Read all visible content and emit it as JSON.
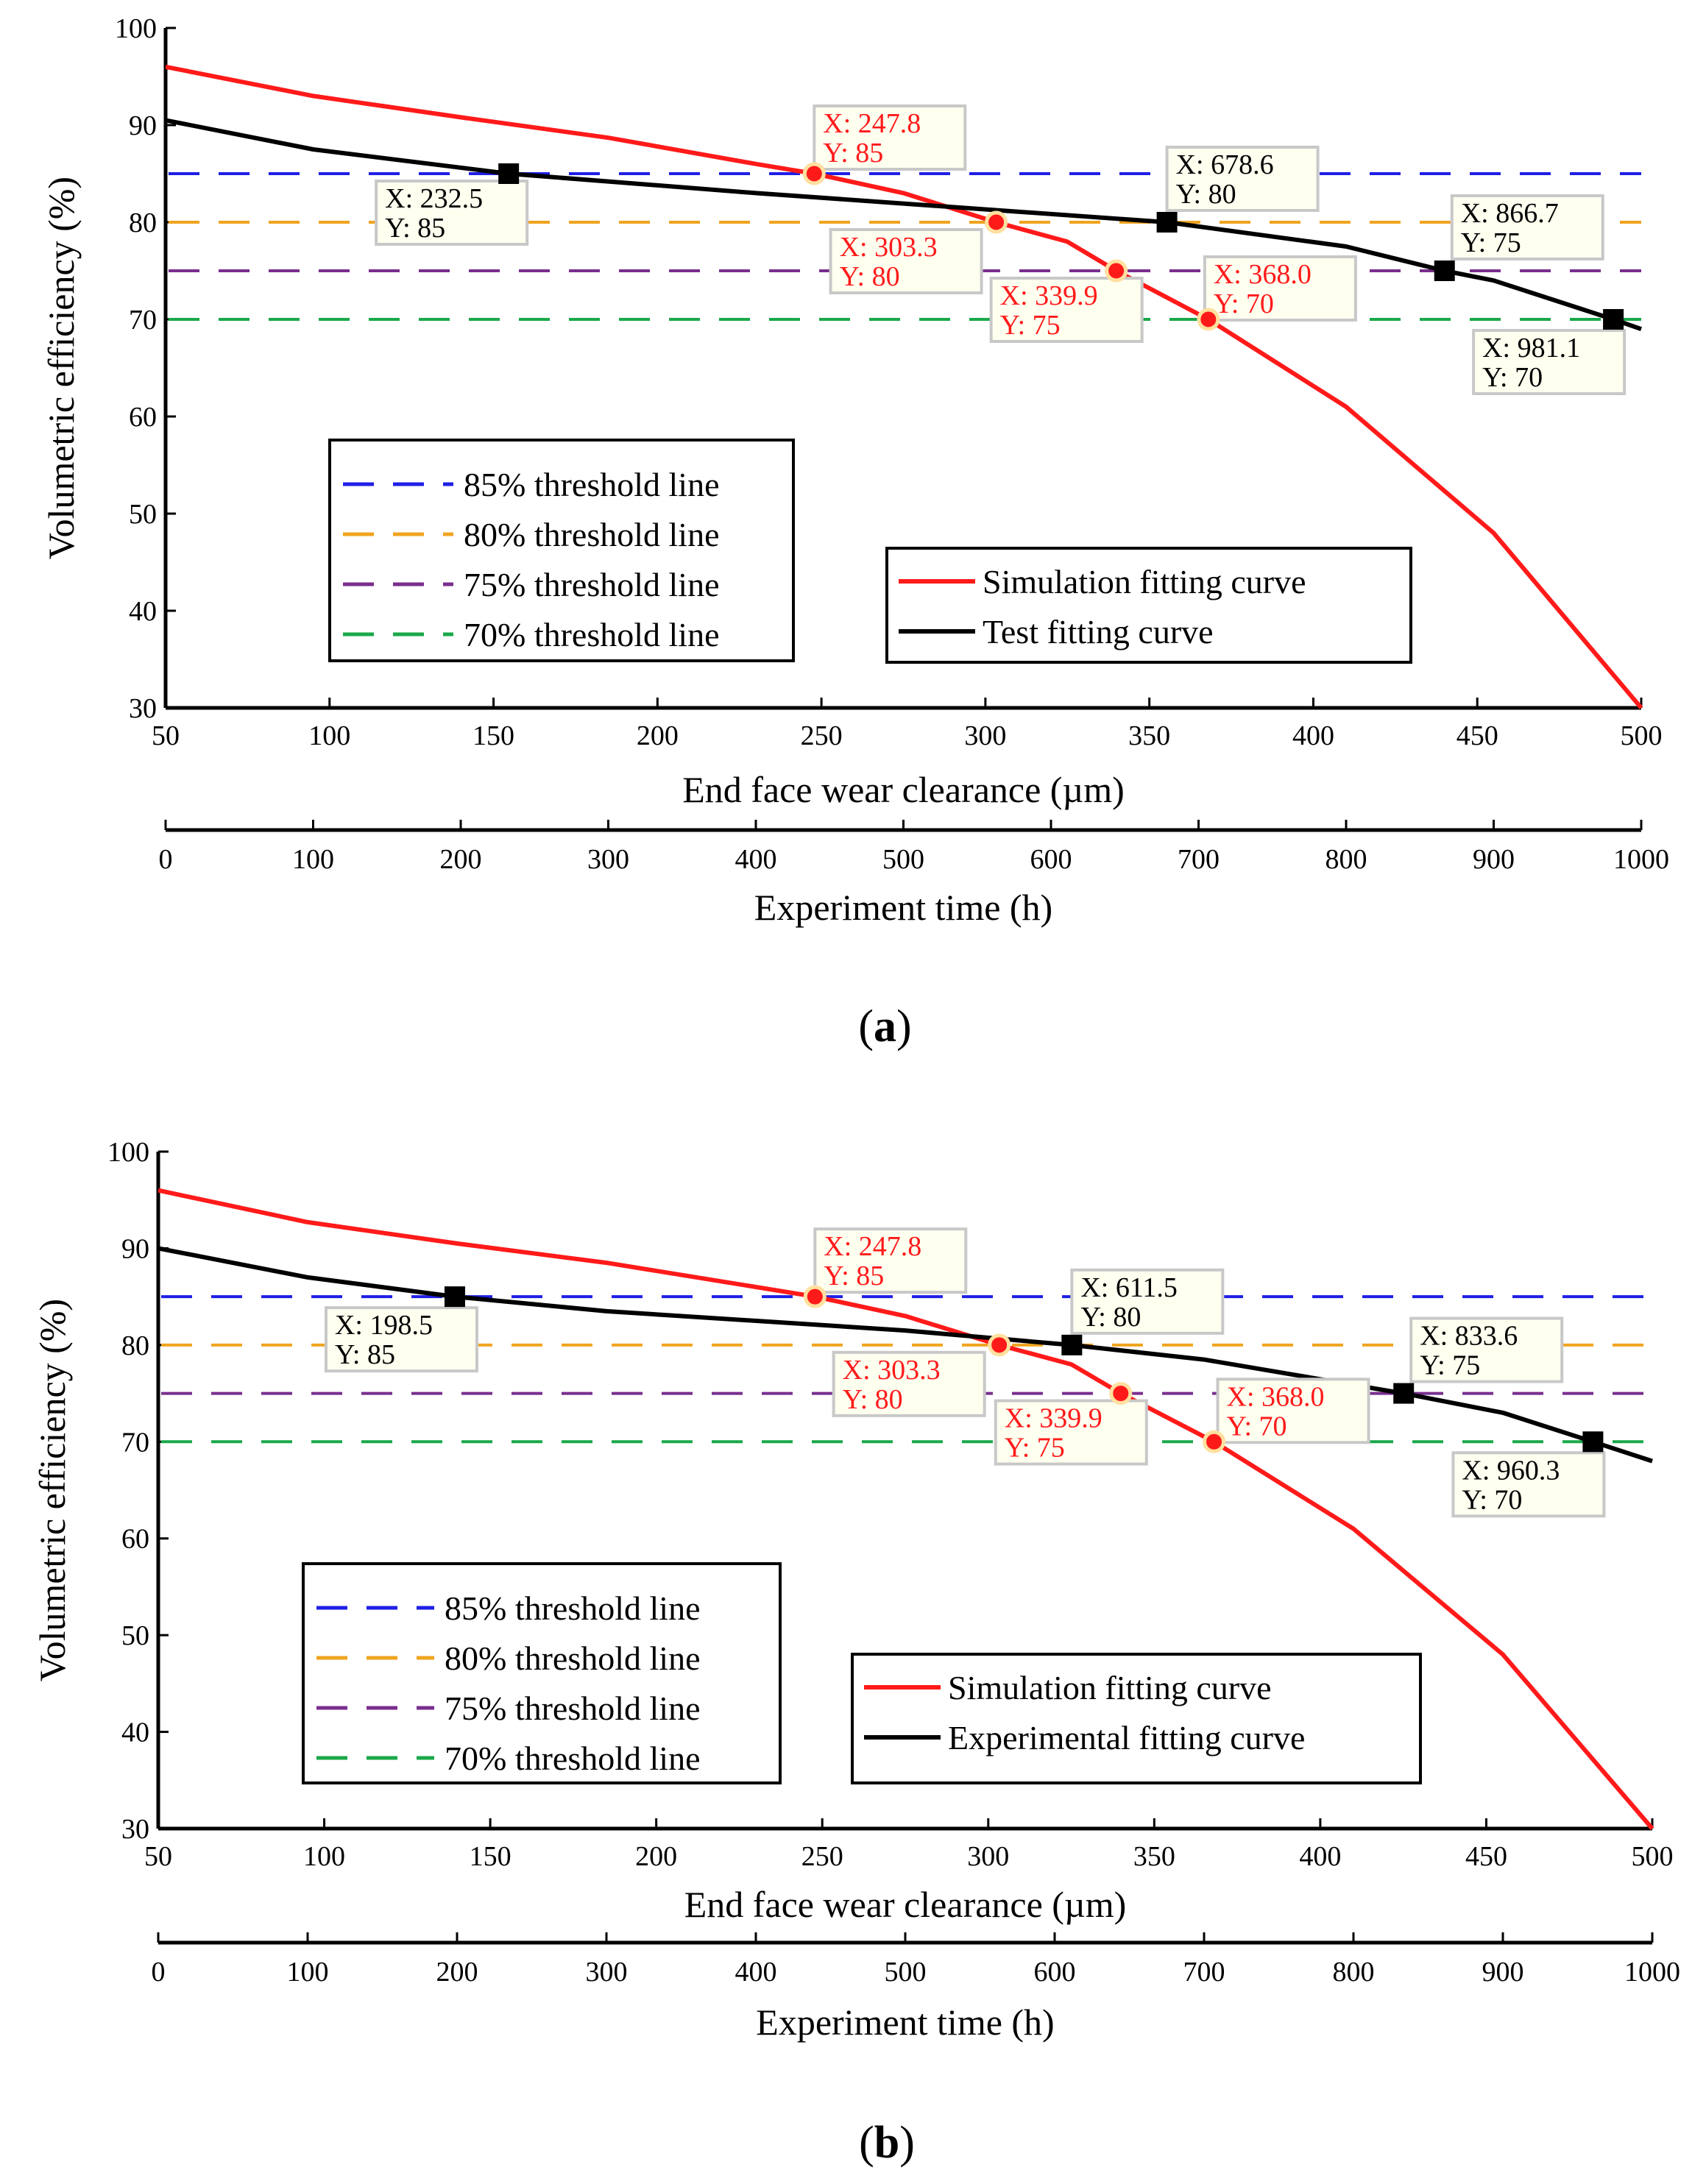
{
  "chart_data": [
    {
      "id": "a",
      "type": "line",
      "panel_label_open": "(",
      "panel_label_letter": "a",
      "panel_label_close": ")",
      "ylabel": "Volumetric efficiency (%)",
      "xlabel": "End face wear clearance (µm)",
      "x2label": "Experiment time (h)",
      "ylim": [
        30,
        100
      ],
      "xlim": [
        50,
        500
      ],
      "x2lim": [
        0,
        1000
      ],
      "yticks": [
        "30",
        "40",
        "50",
        "60",
        "70",
        "80",
        "90",
        "100"
      ],
      "xticks": [
        "50",
        "100",
        "150",
        "200",
        "250",
        "300",
        "350",
        "400",
        "450",
        "500"
      ],
      "x2ticks": [
        "0",
        "100",
        "200",
        "300",
        "400",
        "500",
        "600",
        "700",
        "800",
        "900",
        "1000"
      ],
      "thresholds": [
        {
          "label": "85% threshold line",
          "y": 85,
          "color": "#1f1fe6"
        },
        {
          "label": "80% threshold line",
          "y": 80,
          "color": "#f0a420"
        },
        {
          "label": "75% threshold line",
          "y": 75,
          "color": "#7a2e8e"
        },
        {
          "label": "70% threshold line",
          "y": 70,
          "color": "#1aa84a"
        }
      ],
      "series": [
        {
          "name": "Simulation fitting curve",
          "color": "#ff1a1a",
          "axis": "x",
          "x": [
            50,
            95,
            140,
            185,
            230,
            247.8,
            275,
            303.3,
            325,
            339.9,
            368,
            410,
            455,
            500
          ],
          "y": [
            96,
            93,
            90.8,
            88.7,
            86,
            85,
            83,
            80,
            78,
            75,
            70,
            61,
            48,
            30
          ]
        },
        {
          "name": "Test fitting curve",
          "color": "#000000",
          "axis": "x2",
          "x": [
            0,
            100,
            232.5,
            400,
            678.6,
            800,
            866.7,
            900,
            981.1,
            1000
          ],
          "y": [
            90.5,
            87.5,
            85,
            83,
            80,
            77.5,
            75,
            74,
            70,
            69
          ]
        }
      ],
      "markers": [
        {
          "series": 0,
          "x": 247.8,
          "y": 85,
          "label_x": "X: 247.8",
          "label_y": "Y: 85"
        },
        {
          "series": 0,
          "x": 303.3,
          "y": 80,
          "label_x": "X: 303.3",
          "label_y": "Y: 80"
        },
        {
          "series": 0,
          "x": 339.9,
          "y": 75,
          "label_x": "X: 339.9",
          "label_y": "Y: 75"
        },
        {
          "series": 0,
          "x": 368.0,
          "y": 70,
          "label_x": "X: 368.0",
          "label_y": "Y: 70"
        },
        {
          "series": 1,
          "x": 232.5,
          "y": 85,
          "label_x": "X: 232.5",
          "label_y": "Y: 85"
        },
        {
          "series": 1,
          "x": 678.6,
          "y": 80,
          "label_x": "X: 678.6",
          "label_y": "Y: 80"
        },
        {
          "series": 1,
          "x": 866.7,
          "y": 75,
          "label_x": "X: 866.7",
          "label_y": "Y: 75"
        },
        {
          "series": 1,
          "x": 981.1,
          "y": 70,
          "label_x": "X: 981.1",
          "label_y": "Y: 70"
        }
      ]
    },
    {
      "id": "b",
      "type": "line",
      "panel_label_open": "(",
      "panel_label_letter": "b",
      "panel_label_close": ")",
      "ylabel": "Volumetric efficiency (%)",
      "xlabel": "End face wear clearance (µm)",
      "x2label": "Experiment time (h)",
      "ylim": [
        30,
        100
      ],
      "xlim": [
        50,
        500
      ],
      "x2lim": [
        0,
        1000
      ],
      "yticks": [
        "30",
        "40",
        "50",
        "60",
        "70",
        "80",
        "90",
        "100"
      ],
      "xticks": [
        "50",
        "100",
        "150",
        "200",
        "250",
        "300",
        "350",
        "400",
        "450",
        "500"
      ],
      "x2ticks": [
        "0",
        "100",
        "200",
        "300",
        "400",
        "500",
        "600",
        "700",
        "800",
        "900",
        "1000"
      ],
      "thresholds": [
        {
          "label": "85% threshold line",
          "y": 85,
          "color": "#1f1fe6"
        },
        {
          "label": "80% threshold line",
          "y": 80,
          "color": "#f0a420"
        },
        {
          "label": "75% threshold line",
          "y": 75,
          "color": "#7a2e8e"
        },
        {
          "label": "70% threshold line",
          "y": 70,
          "color": "#1aa84a"
        }
      ],
      "series": [
        {
          "name": "Simulation fitting curve",
          "color": "#ff1a1a",
          "axis": "x",
          "x": [
            50,
            95,
            140,
            185,
            230,
            247.8,
            275,
            303.3,
            325,
            339.9,
            368,
            410,
            455,
            500
          ],
          "y": [
            96,
            92.7,
            90.5,
            88.5,
            86,
            85,
            83,
            80,
            78,
            75,
            70,
            61,
            48,
            30
          ]
        },
        {
          "name": "Experimental fitting curve",
          "color": "#000000",
          "axis": "x2",
          "x": [
            0,
            100,
            198.5,
            300,
            500,
            611.5,
            700,
            833.6,
            900,
            960.3,
            1000
          ],
          "y": [
            90,
            87,
            85,
            83.5,
            81.5,
            80,
            78.5,
            75,
            73,
            70,
            68
          ]
        }
      ],
      "markers": [
        {
          "series": 0,
          "x": 247.8,
          "y": 85,
          "label_x": "X: 247.8",
          "label_y": "Y: 85"
        },
        {
          "series": 0,
          "x": 303.3,
          "y": 80,
          "label_x": "X: 303.3",
          "label_y": "Y: 80"
        },
        {
          "series": 0,
          "x": 339.9,
          "y": 75,
          "label_x": "X: 339.9",
          "label_y": "Y: 75"
        },
        {
          "series": 0,
          "x": 368.0,
          "y": 70,
          "label_x": "X: 368.0",
          "label_y": "Y: 70"
        },
        {
          "series": 1,
          "x": 198.5,
          "y": 85,
          "label_x": "X: 198.5",
          "label_y": "Y: 85"
        },
        {
          "series": 1,
          "x": 611.5,
          "y": 80,
          "label_x": "X: 611.5",
          "label_y": "Y: 80"
        },
        {
          "series": 1,
          "x": 833.6,
          "y": 75,
          "label_x": "X: 833.6",
          "label_y": "Y: 75"
        },
        {
          "series": 1,
          "x": 960.3,
          "y": 70,
          "label_x": "X: 960.3",
          "label_y": "Y: 70"
        }
      ]
    }
  ]
}
